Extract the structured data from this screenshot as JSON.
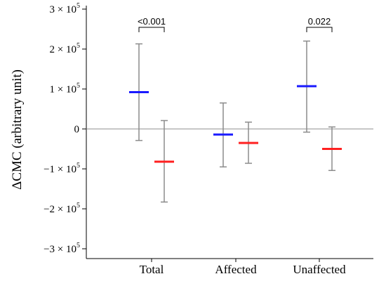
{
  "chart_data": {
    "type": "errorbar",
    "ylabel": "ΔCMC (arbitrary unit)",
    "ylim": [
      -320000,
      320000
    ],
    "yticks": [
      {
        "value": 300000,
        "label": "3 × 10",
        "exp": "5"
      },
      {
        "value": 200000,
        "label": "2 × 10",
        "exp": "5"
      },
      {
        "value": 100000,
        "label": "1 × 10",
        "exp": "5"
      },
      {
        "value": 0,
        "label": "0",
        "exp": ""
      },
      {
        "value": -100000,
        "label": "−1 × 10",
        "exp": "5"
      },
      {
        "value": -200000,
        "label": "−2 × 10",
        "exp": "5"
      },
      {
        "value": -300000,
        "label": "−3 × 10",
        "exp": "5"
      }
    ],
    "categories": [
      "Total",
      "Affected",
      "Unaffected"
    ],
    "series": [
      {
        "color": "#1a1aff",
        "means": [
          92000,
          -14000,
          107000
        ],
        "lower": [
          -29000,
          -95000,
          -8000
        ],
        "upper": [
          213000,
          65000,
          220000
        ]
      },
      {
        "color": "#ff2020",
        "means": [
          -82000,
          -35000,
          -50000
        ],
        "lower": [
          -183000,
          -86000,
          -104000
        ],
        "upper": [
          21000,
          17000,
          5000
        ]
      }
    ],
    "annotations": [
      {
        "category": 0,
        "text": "<0.001"
      },
      {
        "category": 2,
        "text": "0.022"
      }
    ],
    "colors": {
      "errorbar": "#8c8c8c",
      "zero_line": "#8c8c8c",
      "axis": "#000000"
    }
  }
}
